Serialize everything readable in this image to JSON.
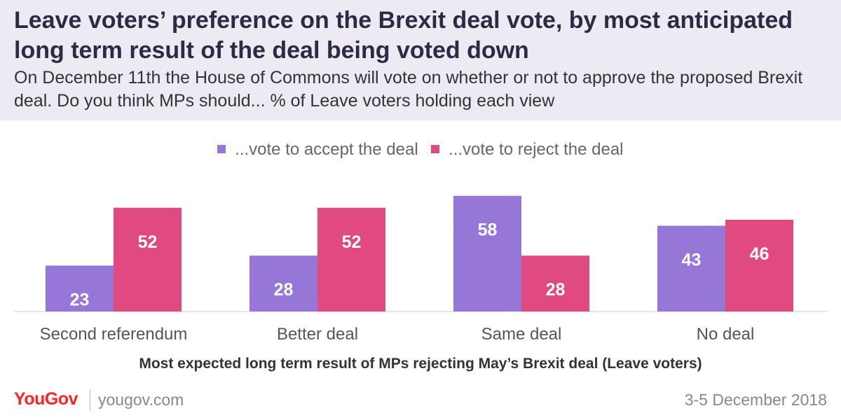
{
  "header": {
    "title": "Leave voters’ preference on the Brexit deal vote, by most anticipated long term result of the deal being voted down",
    "subtitle": "On December 11th the House of Commons will vote on whether or not to approve the proposed Brexit deal. Do you think MPs should... % of Leave voters holding each view"
  },
  "chart_data": {
    "type": "bar",
    "title": "Leave voters’ preference on the Brexit deal vote, by most anticipated long term result of the deal being voted down",
    "subtitle": "On December 11th the House of Commons will vote on whether or not to approve the proposed Brexit deal. Do you think MPs should... % of Leave voters holding each view",
    "xlabel": "Most expected long term result of MPs rejecting May’s Brexit deal (Leave voters)",
    "ylabel": "",
    "categories": [
      "Second referendum",
      "Better deal",
      "Same deal",
      "No deal"
    ],
    "series": [
      {
        "name": "...vote to accept the deal",
        "color": "#9676d7",
        "values": [
          23,
          28,
          58,
          43
        ]
      },
      {
        "name": "...vote to reject the deal",
        "color": "#e04a80",
        "values": [
          52,
          52,
          28,
          46
        ]
      }
    ],
    "ylim": [
      0,
      65
    ],
    "grid": false,
    "legend_position": "top-center",
    "data_label_color": "#ffffff",
    "axis_color": "#cccccc"
  },
  "footer": {
    "logo": "YouGov",
    "url": "yougov.com",
    "date": "3-5 December 2018"
  }
}
